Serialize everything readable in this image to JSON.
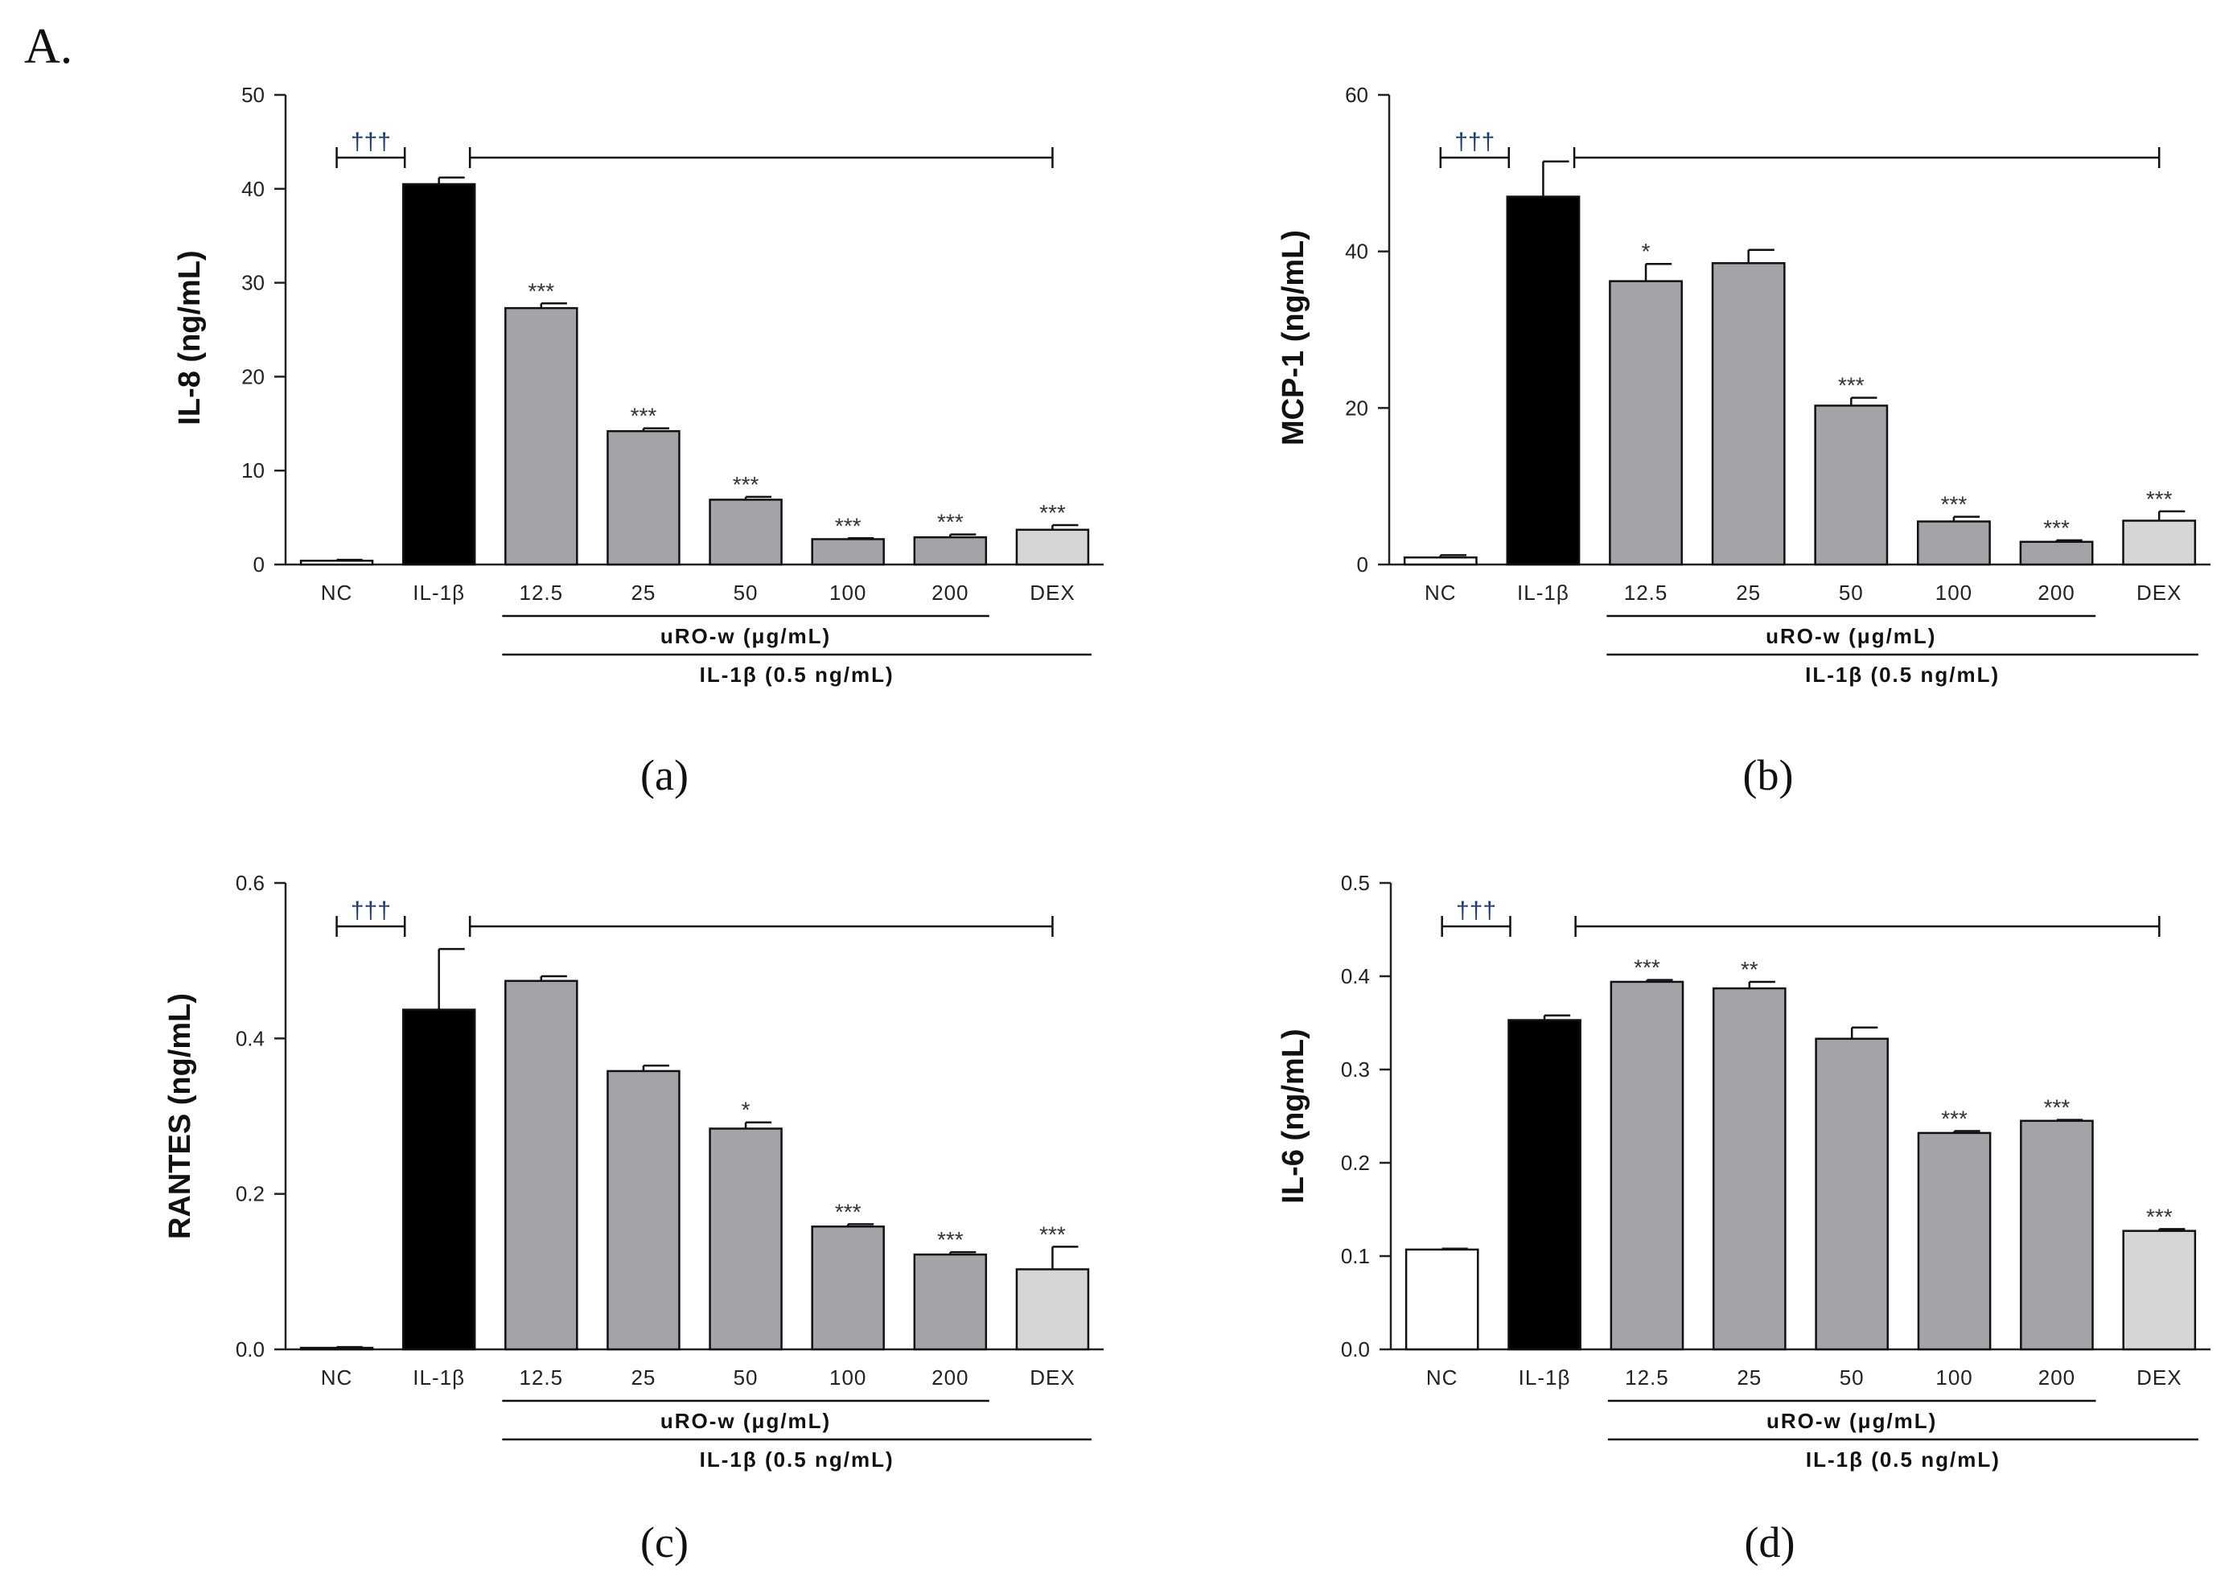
{
  "figure_label": "A.",
  "group_label_1": "uRO-w (μg/mL)",
  "group_label_2": "IL-1β (0.5 ng/mL)",
  "chart_data": [
    {
      "type": "bar",
      "caption": "(a)",
      "ylabel": "IL-8 (ng/mL)",
      "ylim": [
        0,
        50
      ],
      "yticks": [
        0,
        10,
        20,
        30,
        40,
        50
      ],
      "ytick_labels": [
        "0",
        "10",
        "20",
        "30",
        "40",
        "50"
      ],
      "categories": [
        "NC",
        "IL-1β",
        "12.5",
        "25",
        "50",
        "100",
        "200",
        "DEX"
      ],
      "values": [
        0.4,
        40.5,
        27.3,
        14.2,
        6.9,
        2.7,
        2.9,
        3.7
      ],
      "errors": [
        0.1,
        0.7,
        0.5,
        0.3,
        0.3,
        0.1,
        0.3,
        0.5
      ],
      "significance": [
        "",
        "",
        "***",
        "***",
        "***",
        "***",
        "***",
        "***"
      ],
      "dagger": "†††"
    },
    {
      "type": "bar",
      "caption": "(b)",
      "ylabel": "MCP-1 (ng/mL)",
      "ylim": [
        0,
        60
      ],
      "yticks": [
        0,
        20,
        40,
        60
      ],
      "ytick_labels": [
        "0",
        "20",
        "40",
        "60"
      ],
      "categories": [
        "NC",
        "IL-1β",
        "12.5",
        "25",
        "50",
        "100",
        "200",
        "DEX"
      ],
      "values": [
        0.9,
        47.0,
        36.2,
        38.5,
        20.3,
        5.5,
        2.9,
        5.6
      ],
      "errors": [
        0.3,
        4.5,
        2.2,
        1.7,
        1.0,
        0.6,
        0.2,
        1.2
      ],
      "significance": [
        "",
        "",
        "*",
        "",
        "***",
        "***",
        "***",
        "***"
      ],
      "dagger": "†††"
    },
    {
      "type": "bar",
      "caption": "(c)",
      "ylabel": "RANTES (ng/mL)",
      "ylim": [
        0,
        0.6
      ],
      "yticks": [
        0,
        0.2,
        0.4,
        0.6
      ],
      "ytick_labels": [
        "0.0",
        "0.2",
        "0.4",
        "0.6"
      ],
      "categories": [
        "NC",
        "IL-1β",
        "12.5",
        "25",
        "50",
        "100",
        "200",
        "DEX"
      ],
      "values": [
        0.002,
        0.437,
        0.474,
        0.358,
        0.284,
        0.158,
        0.122,
        0.103
      ],
      "errors": [
        0.001,
        0.078,
        0.006,
        0.007,
        0.008,
        0.003,
        0.003,
        0.029
      ],
      "significance": [
        "",
        "",
        "",
        "",
        "*",
        "***",
        "***",
        "***"
      ],
      "dagger": "†††"
    },
    {
      "type": "bar",
      "caption": "(d)",
      "ylabel": "IL-6 (ng/mL)",
      "ylim": [
        0,
        0.5
      ],
      "yticks": [
        0,
        0.1,
        0.2,
        0.3,
        0.4,
        0.5
      ],
      "ytick_labels": [
        "0.0",
        "0.1",
        "0.2",
        "0.3",
        "0.4",
        "0.5"
      ],
      "categories": [
        "NC",
        "IL-1β",
        "12.5",
        "25",
        "50",
        "100",
        "200",
        "DEX"
      ],
      "values": [
        0.107,
        0.353,
        0.394,
        0.387,
        0.333,
        0.232,
        0.245,
        0.127
      ],
      "errors": [
        0.001,
        0.005,
        0.002,
        0.007,
        0.012,
        0.002,
        0.001,
        0.002
      ],
      "significance": [
        "",
        "",
        "***",
        "**",
        "",
        "***",
        "***",
        "***"
      ],
      "dagger": "†††"
    }
  ],
  "colors": {
    "nc": "#ffffff",
    "il1b": "#000000",
    "treatment": "#a4a4a8",
    "dex": "#d6d6d6",
    "axis": "#222222",
    "dagger": "#1d3b72"
  }
}
